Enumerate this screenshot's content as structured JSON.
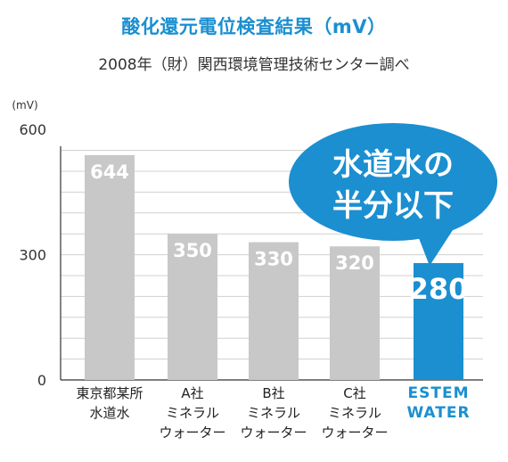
{
  "title": "酸化還元電位検査結果（mV）",
  "subtitle": "2008年（財）関西環境管理技術センター調べ",
  "callout": [
    "水道水の",
    "半分以下"
  ],
  "colors": {
    "title": "#1b8fd0",
    "bar_gray": "#c8c8c8",
    "bar_highlight": "#1b8fd0",
    "callout": "#1b8fd0",
    "grid": "#d0d0d0",
    "axis": "#333333"
  },
  "chart_data": {
    "type": "bar",
    "ylabel": "(mV)",
    "ylim": [
      0,
      560
    ],
    "yticks": [
      0,
      300,
      600
    ],
    "grid": true,
    "categories": [
      [
        "東京都某所",
        "水道水"
      ],
      [
        "A社",
        "ミネラル",
        "ウォーター"
      ],
      [
        "B社",
        "ミネラル",
        "ウォーター"
      ],
      [
        "C社",
        "ミネラル",
        "ウォーター"
      ],
      [
        "ESTEM",
        "WATER"
      ]
    ],
    "values": [
      644,
      350,
      330,
      320,
      280
    ],
    "value_labels": [
      "644",
      "350",
      "330",
      "320",
      "280"
    ],
    "highlight_index": 4
  }
}
